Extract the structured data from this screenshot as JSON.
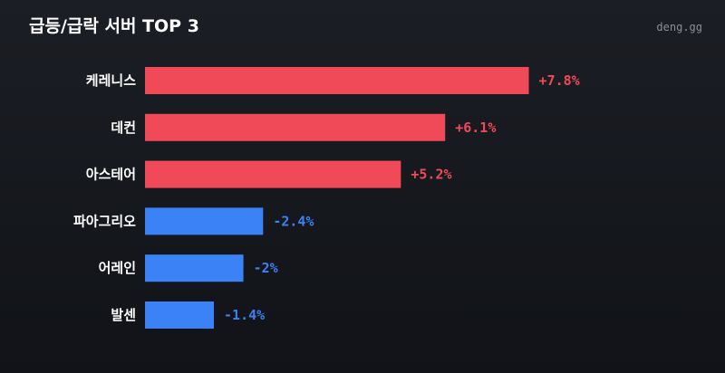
{
  "header": {
    "title": "급등/급락 서버 TOP 3",
    "brand": "deng.gg"
  },
  "colors": {
    "positive": "#f04a58",
    "negative": "#3a82f6",
    "background": "#15171c"
  },
  "chart_data": {
    "type": "bar",
    "orientation": "horizontal",
    "title": "급등/급락 서버 TOP 3",
    "categories": [
      "케레니스",
      "데컨",
      "아스테어",
      "파아그리오",
      "어레인",
      "발센"
    ],
    "values": [
      7.8,
      6.1,
      5.2,
      -2.4,
      -2,
      -1.4
    ],
    "value_labels": [
      "+7.8%",
      "+6.1%",
      "+5.2%",
      "-2.4%",
      "-2%",
      "-1.4%"
    ],
    "unit": "%",
    "grid": false,
    "legend": "none"
  }
}
